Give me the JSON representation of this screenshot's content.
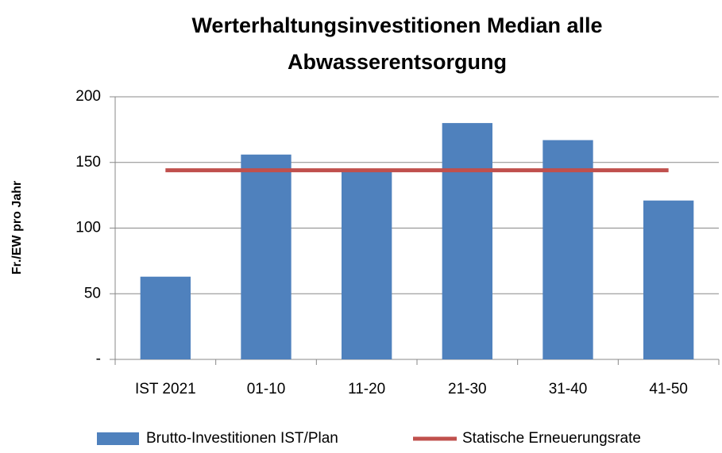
{
  "chart_data": {
    "type": "bar",
    "title": [
      "Werterhaltungsinvestitionen Median alle",
      "Abwasserentsorgung"
    ],
    "y_label": "Fr./EW pro Jahr",
    "categories": [
      "IST 2021",
      "01-10",
      "11-20",
      "21-30",
      "31-40",
      "41-50"
    ],
    "series": [
      {
        "name": "Brutto-Investitionen IST/Plan",
        "type": "bar",
        "color": "#4f81bd",
        "values": [
          63,
          156,
          145,
          180,
          167,
          121
        ]
      },
      {
        "name": "Statische Erneuerungsrate",
        "type": "line",
        "color": "#c0504d",
        "values": [
          144,
          144,
          144,
          144,
          144,
          144
        ]
      }
    ],
    "ylim": [
      0,
      200
    ],
    "yticks": [
      {
        "value": 0,
        "label": "-"
      },
      50,
      100,
      150,
      200
    ],
    "grid": true
  }
}
